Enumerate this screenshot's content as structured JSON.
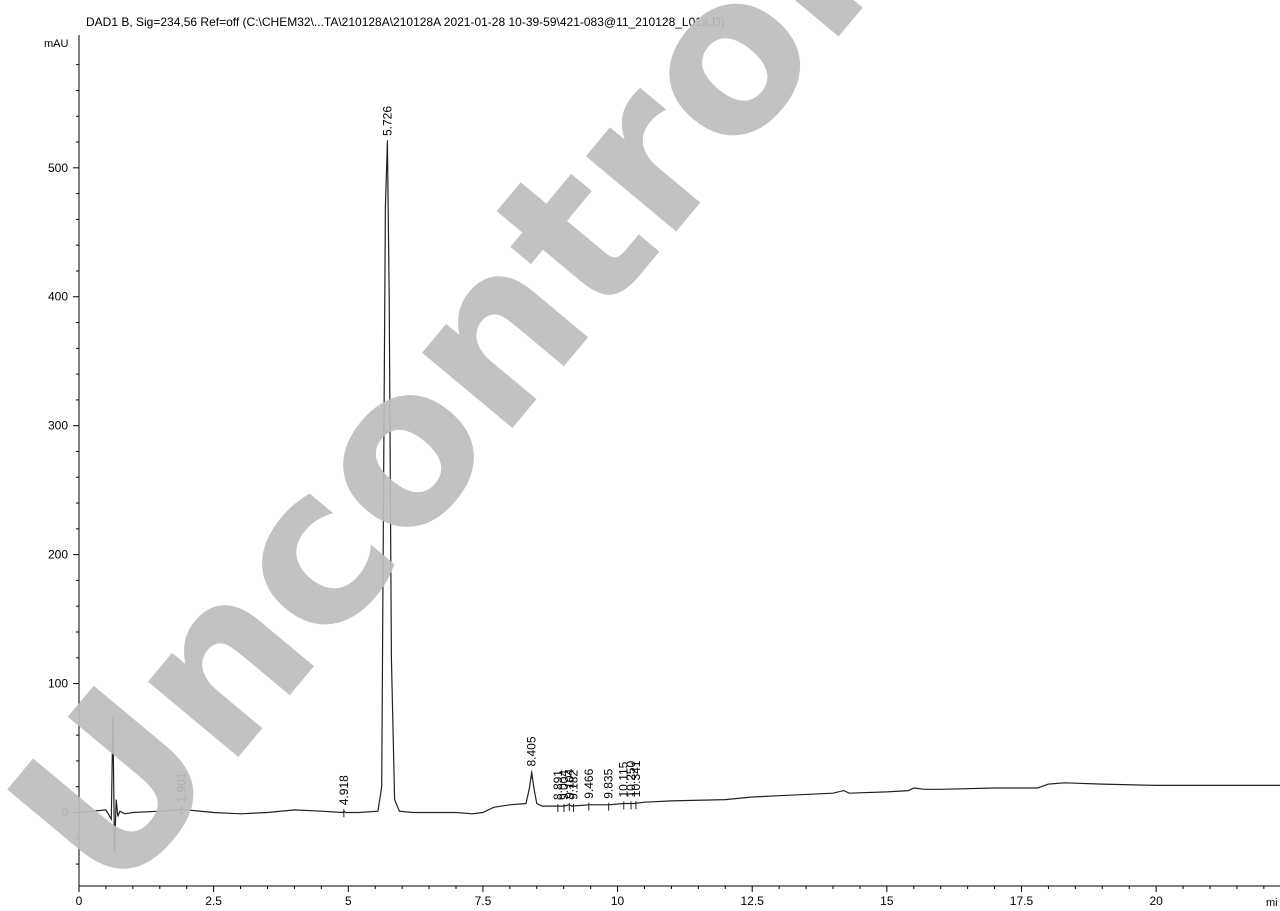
{
  "header": {
    "title": "DAD1 B, Sig=234,56 Ref=off (C:\\CHEM32\\...TA\\210128A\\210128A 2021-01-28 10-39-59\\421-083@11_210128_L01a.D)"
  },
  "watermark": {
    "text": "Uncontrolled",
    "color": "#bdbdbd"
  },
  "chart_data": {
    "type": "line",
    "title": "DAD1 B, Sig=234,56 Ref=off (C:\\CHEM32\\...TA\\210128A\\210128A 2021-01-28 10-39-59\\421-083@11_210128_L01a.D)",
    "ylabel": "mAU",
    "xlabel": "mi",
    "xlim": [
      0,
      22.3
    ],
    "ylim": [
      -57,
      603
    ],
    "xticks": [
      0,
      2.5,
      5,
      7.5,
      10,
      12.5,
      15,
      17.5,
      20
    ],
    "xtick_labels": [
      "0",
      "2.5",
      "5",
      "7.5",
      "10",
      "12.5",
      "15",
      "17.5",
      "20"
    ],
    "yticks": [
      0,
      100,
      200,
      300,
      400,
      500
    ],
    "ytick_labels": [
      "0",
      "100",
      "200",
      "300",
      "400",
      "500"
    ],
    "grid": false,
    "line_color": "#222222",
    "series": [
      {
        "x": [
          0,
          0.5,
          0.6,
          0.63,
          0.66,
          0.69,
          0.72,
          0.76,
          0.85,
          1.0,
          1.5,
          1.85,
          1.901,
          1.95,
          2.0,
          2.5,
          3.0,
          3.5,
          4.0,
          4.5,
          4.9,
          4.918,
          4.95,
          5.2,
          5.55,
          5.62,
          5.66,
          5.69,
          5.726,
          5.76,
          5.8,
          5.86,
          5.95,
          6.2,
          7.0,
          7.3,
          7.5,
          7.7,
          8.0,
          8.3,
          8.36,
          8.405,
          8.45,
          8.5,
          8.6,
          8.891,
          9.0,
          9.1,
          9.15,
          9.466,
          9.835,
          10.115,
          10.2,
          10.3,
          10.5,
          11.0,
          12.0,
          12.5,
          13.0,
          14.0,
          14.2,
          14.3,
          15.0,
          15.4,
          15.5,
          15.7,
          16.0,
          17.0,
          17.5,
          17.8,
          18.0,
          18.3,
          19.0,
          20.0,
          21.0,
          22.3
        ],
        "y": [
          0,
          2,
          -5,
          75,
          -30,
          10,
          -3,
          1,
          -1,
          0,
          1,
          2,
          3,
          2,
          2,
          0,
          -1,
          0,
          2,
          1,
          0,
          1,
          0,
          0,
          1,
          20,
          280,
          470,
          520,
          400,
          120,
          10,
          1,
          0,
          0,
          -1,
          0,
          4,
          6,
          7,
          18,
          31,
          18,
          7,
          5,
          5,
          5,
          6,
          5,
          6,
          6,
          7,
          7,
          7,
          8,
          9,
          10,
          12,
          13,
          15,
          17,
          15,
          16,
          17,
          19,
          18,
          18,
          19,
          19,
          19,
          22,
          23,
          22,
          21,
          21,
          21
        ]
      }
    ],
    "peak_labels": [
      {
        "rt": 1.901,
        "text": "1.901"
      },
      {
        "rt": 4.918,
        "text": "4.918"
      },
      {
        "rt": 5.726,
        "text": "5.726"
      },
      {
        "rt": 8.405,
        "text": "8.405"
      },
      {
        "rt": 8.891,
        "text": "8.891"
      },
      {
        "rt": 9.004,
        "text": "9.004"
      },
      {
        "rt": 9.104,
        "text": "9.104"
      },
      {
        "rt": 9.182,
        "text": "9.182"
      },
      {
        "rt": 9.466,
        "text": "9.466"
      },
      {
        "rt": 9.835,
        "text": "9.835"
      },
      {
        "rt": 10.115,
        "text": "10.115"
      },
      {
        "rt": 10.25,
        "text": "10.250"
      },
      {
        "rt": 10.341,
        "text": "10.341"
      }
    ]
  }
}
